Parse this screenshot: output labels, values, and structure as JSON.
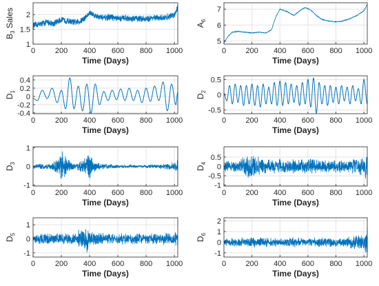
{
  "chart_data": [
    {
      "type": "line",
      "ylabel": "B3 Sales",
      "ylabel_main": "B",
      "ylabel_sub": "3",
      "ylabel_rest": " Sales",
      "xlabel": "Time (Days)",
      "xlim": [
        0,
        1024
      ],
      "ylim": [
        1,
        2.4
      ],
      "xticks": [
        0,
        200,
        400,
        600,
        800,
        1000
      ],
      "yticks": [
        1,
        1.5,
        2
      ],
      "ytick_labels": [
        "1",
        "1.5",
        "2"
      ],
      "grid": true,
      "color": "#0072BD",
      "x": [
        0,
        50,
        100,
        150,
        200,
        250,
        300,
        340,
        380,
        400,
        450,
        500,
        550,
        600,
        650,
        700,
        750,
        800,
        850,
        900,
        950,
        1000,
        1024
      ],
      "y": [
        1.62,
        1.68,
        1.74,
        1.7,
        1.82,
        1.78,
        1.73,
        1.78,
        1.95,
        2.05,
        1.95,
        1.88,
        1.92,
        1.86,
        1.9,
        1.85,
        1.88,
        1.85,
        1.9,
        1.87,
        1.92,
        2.0,
        2.25
      ],
      "noise": 0.13
    },
    {
      "type": "line",
      "ylabel": "A6",
      "ylabel_main": "A",
      "ylabel_sub": "6",
      "ylabel_rest": "",
      "xlabel": "Time (Days)",
      "xlim": [
        0,
        1024
      ],
      "ylim": [
        4.8,
        7.4
      ],
      "xticks": [
        0,
        200,
        400,
        600,
        800,
        1000
      ],
      "yticks": [
        5,
        6,
        7
      ],
      "ytick_labels": [
        "5",
        "6",
        "7"
      ],
      "grid": true,
      "color": "#0072BD",
      "x": [
        0,
        30,
        60,
        100,
        150,
        200,
        250,
        300,
        340,
        370,
        400,
        450,
        500,
        550,
        580,
        620,
        660,
        700,
        750,
        800,
        850,
        900,
        950,
        1000,
        1024
      ],
      "y": [
        4.9,
        5.3,
        5.55,
        5.6,
        5.55,
        5.5,
        5.55,
        5.5,
        5.7,
        6.5,
        7.0,
        6.85,
        6.6,
        6.95,
        7.1,
        6.95,
        6.6,
        6.35,
        6.25,
        6.2,
        6.25,
        6.4,
        6.6,
        6.9,
        7.3
      ],
      "noise": 0.02
    },
    {
      "type": "line",
      "ylabel": "D1",
      "ylabel_main": "D",
      "ylabel_sub": "1",
      "ylabel_rest": "",
      "xlabel": "Time (Days)",
      "xlim": [
        0,
        1024
      ],
      "ylim": [
        -0.42,
        0.5
      ],
      "xticks": [
        0,
        200,
        400,
        600,
        800,
        1000
      ],
      "yticks": [
        -0.4,
        -0.2,
        0,
        0.2,
        0.4
      ],
      "ytick_labels": [
        "-0.4",
        "-0.2",
        "0",
        "0.2",
        "0.4"
      ],
      "grid": true,
      "color": "#0072BD",
      "x": [
        0,
        30,
        65,
        100,
        135,
        170,
        200,
        230,
        260,
        290,
        320,
        350,
        380,
        410,
        440,
        470,
        500,
        530,
        560,
        590,
        620,
        650,
        680,
        710,
        740,
        770,
        800,
        830,
        860,
        890,
        920,
        950,
        980,
        1010,
        1024
      ],
      "y": [
        -0.05,
        -0.1,
        0.15,
        -0.05,
        0.2,
        -0.15,
        0.15,
        -0.3,
        0.45,
        -0.3,
        0.25,
        -0.35,
        0.3,
        -0.4,
        0.3,
        -0.2,
        0.12,
        -0.1,
        0.15,
        -0.08,
        0.18,
        -0.1,
        0.2,
        -0.1,
        0.15,
        -0.15,
        0.2,
        -0.12,
        0.25,
        -0.1,
        0.35,
        -0.35,
        0.3,
        -0.2,
        0.1
      ],
      "noise": 0.0
    },
    {
      "type": "line",
      "ylabel": "D2",
      "ylabel_main": "D",
      "ylabel_sub": "2",
      "ylabel_rest": "",
      "xlabel": "Time (Days)",
      "xlim": [
        0,
        1024
      ],
      "ylim": [
        -0.62,
        0.62
      ],
      "xticks": [
        0,
        200,
        400,
        600,
        800,
        1000
      ],
      "yticks": [
        -0.5,
        0,
        0.5
      ],
      "ytick_labels": [
        "-0.5",
        "0",
        "0.5"
      ],
      "grid": true,
      "color": "#0072BD",
      "x": [
        0,
        20,
        40,
        60,
        80,
        100,
        120,
        140,
        160,
        180,
        200,
        220,
        240,
        260,
        280,
        300,
        320,
        340,
        360,
        380,
        400,
        420,
        440,
        460,
        480,
        500,
        520,
        540,
        560,
        580,
        600,
        620,
        640,
        660,
        680,
        700,
        720,
        740,
        760,
        780,
        800,
        820,
        840,
        860,
        880,
        900,
        920,
        940,
        960,
        980,
        1000,
        1024
      ],
      "y": [
        0.05,
        -0.2,
        0.3,
        -0.3,
        0.35,
        -0.25,
        0.3,
        -0.35,
        0.3,
        -0.3,
        0.35,
        -0.35,
        0.3,
        -0.4,
        0.35,
        -0.3,
        0.25,
        -0.3,
        0.4,
        -0.35,
        0.45,
        -0.35,
        0.4,
        -0.3,
        0.35,
        -0.25,
        0.3,
        -0.35,
        0.4,
        -0.3,
        0.5,
        -0.4,
        0.55,
        -0.6,
        0.4,
        -0.3,
        0.3,
        -0.35,
        0.3,
        -0.25,
        0.25,
        -0.3,
        0.3,
        -0.2,
        0.25,
        -0.3,
        0.3,
        -0.2,
        0.2,
        -0.3,
        0.5,
        -0.3
      ],
      "noise": 0.0
    },
    {
      "type": "line",
      "ylabel": "D3",
      "ylabel_main": "D",
      "ylabel_sub": "3",
      "ylabel_rest": "",
      "xlabel": "Time (Days)",
      "xlim": [
        0,
        1024
      ],
      "ylim": [
        -1.05,
        1.05
      ],
      "xticks": [
        0,
        200,
        400,
        600,
        800,
        1000
      ],
      "yticks": [
        -1,
        0,
        1
      ],
      "ytick_labels": [
        "-1",
        "0",
        "1"
      ],
      "grid": true,
      "color": "#0072BD",
      "x": [
        0,
        100,
        150,
        180,
        200,
        220,
        240,
        260,
        300,
        340,
        380,
        400,
        420,
        440,
        480,
        520,
        560,
        620,
        680,
        740,
        800,
        860,
        920,
        960,
        1000,
        1024
      ],
      "y": [
        0.12,
        0.18,
        0.3,
        0.55,
        0.85,
        0.95,
        0.5,
        0.35,
        0.2,
        0.35,
        0.7,
        0.85,
        0.55,
        0.3,
        0.18,
        0.2,
        0.12,
        0.1,
        0.1,
        0.08,
        0.1,
        0.12,
        0.15,
        0.2,
        0.25,
        0.6
      ],
      "amplitude_envelope": true,
      "noise": 0.0
    },
    {
      "type": "line",
      "ylabel": "D4",
      "ylabel_main": "D",
      "ylabel_sub": "4",
      "ylabel_rest": "",
      "xlabel": "Time (Days)",
      "xlim": [
        0,
        1024
      ],
      "ylim": [
        -1.05,
        1.05
      ],
      "xticks": [
        0,
        200,
        400,
        600,
        800,
        1000
      ],
      "yticks": [
        -1,
        -0.5,
        0,
        0.5
      ],
      "ytick_labels": [
        "-1",
        "-0.5",
        "0",
        "0.5"
      ],
      "grid": true,
      "color": "#0072BD",
      "x": [
        0,
        100,
        200,
        250,
        300,
        400,
        500,
        600,
        700,
        800,
        900,
        1000,
        1024
      ],
      "y": [
        0.3,
        0.35,
        0.9,
        0.5,
        0.4,
        0.45,
        0.4,
        0.45,
        0.4,
        0.35,
        0.4,
        0.5,
        0.9
      ],
      "amplitude_envelope": true,
      "noise": 0.0
    },
    {
      "type": "line",
      "ylabel": "D5",
      "ylabel_main": "D",
      "ylabel_sub": "5",
      "ylabel_rest": "",
      "xlabel": "Time (Days)",
      "xlim": [
        0,
        1024
      ],
      "ylim": [
        -1.3,
        1.5
      ],
      "xticks": [
        0,
        200,
        400,
        600,
        800,
        1000
      ],
      "yticks": [
        -1,
        0,
        1
      ],
      "ytick_labels": [
        "-1",
        "0",
        "1"
      ],
      "grid": true,
      "color": "#0072BD",
      "x": [
        0,
        100,
        200,
        300,
        380,
        400,
        500,
        600,
        700,
        800,
        900,
        1000,
        1024
      ],
      "y": [
        0.4,
        0.45,
        0.45,
        0.5,
        1.2,
        0.6,
        0.45,
        0.4,
        0.45,
        0.4,
        0.45,
        0.5,
        0.6
      ],
      "amplitude_envelope": true,
      "noise": 0.0
    },
    {
      "type": "line",
      "ylabel": "D6",
      "ylabel_main": "D",
      "ylabel_sub": "6",
      "ylabel_rest": "",
      "xlabel": "Time (Days)",
      "xlim": [
        0,
        1024
      ],
      "ylim": [
        -1.4,
        2.3
      ],
      "xticks": [
        0,
        200,
        400,
        600,
        800,
        1000
      ],
      "yticks": [
        -1,
        0,
        1,
        2
      ],
      "ytick_labels": [
        "-1",
        "0",
        "1",
        "2"
      ],
      "grid": true,
      "color": "#0072BD",
      "x": [
        0,
        100,
        200,
        300,
        400,
        500,
        600,
        700,
        800,
        900,
        940,
        1000,
        1024
      ],
      "y": [
        0.4,
        0.45,
        0.5,
        0.5,
        0.45,
        0.5,
        0.45,
        0.5,
        0.45,
        0.55,
        1.0,
        0.6,
        2.0
      ],
      "amplitude_envelope": true,
      "noise": 0.0
    }
  ]
}
